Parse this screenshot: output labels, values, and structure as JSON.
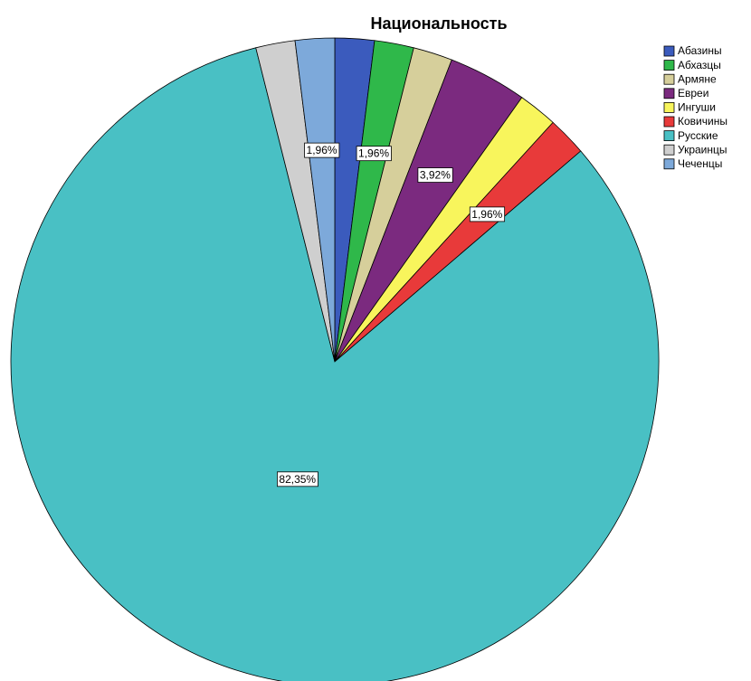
{
  "chart_data": {
    "type": "pie",
    "title": "Национальность",
    "categories": [
      "Абазины",
      "Абхазцы",
      "Армяне",
      "Евреи",
      "Ингуши",
      "Ковичины",
      "Русские",
      "Украинцы",
      "Чеченцы"
    ],
    "values": [
      1.96,
      1.96,
      1.96,
      3.92,
      1.96,
      1.96,
      82.35,
      1.96,
      1.96
    ],
    "value_labels": [
      null,
      "1,96%",
      null,
      "3,92%",
      null,
      "1,96%",
      "82,35%",
      null,
      "1,96%"
    ],
    "colors": [
      "#3b5bbd",
      "#2fb84a",
      "#d6cf9b",
      "#7b2a7f",
      "#f8f55c",
      "#e83a3a",
      "#49c0c4",
      "#cfcfcf",
      "#7da9da"
    ],
    "legend": "top-right"
  }
}
